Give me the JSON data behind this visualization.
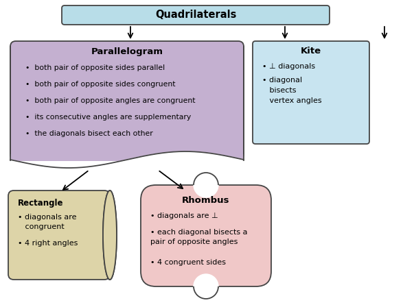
{
  "title": "Quadrilaterals",
  "title_box_color": "#b8dde8",
  "title_box_edge": "#444444",
  "bg_color": "#ffffff",
  "parallelogram": {
    "title": "Parallelogram",
    "fill": "#c4b0d0",
    "edge": "#444444",
    "bullets": [
      "both pair of opposite sides parallel",
      "both pair of opposite sides congruent",
      "both pair of opposite angles are congruent",
      "its consecutive angles are supplementary",
      "the diagonals bisect each other"
    ]
  },
  "kite": {
    "title": "Kite",
    "fill": "#c8e4f0",
    "edge": "#444444",
    "bullets": [
      "⊥ diagonals",
      "diagonal\nbisects\nvertex angles"
    ]
  },
  "rectangle": {
    "title": "Rectangle",
    "fill": "#ddd4a8",
    "edge": "#444444",
    "bullets": [
      "diagonals are\ncongruent",
      "4 right angles"
    ]
  },
  "rhombus": {
    "title": "Rhombus",
    "fill": "#f0c8c8",
    "edge": "#444444",
    "bullets": [
      "diagonals are ⊥",
      "each diagonal bisects a\npair of opposite angles",
      "4 congruent sides"
    ]
  },
  "arrow_color": "#000000",
  "lw": 1.3
}
